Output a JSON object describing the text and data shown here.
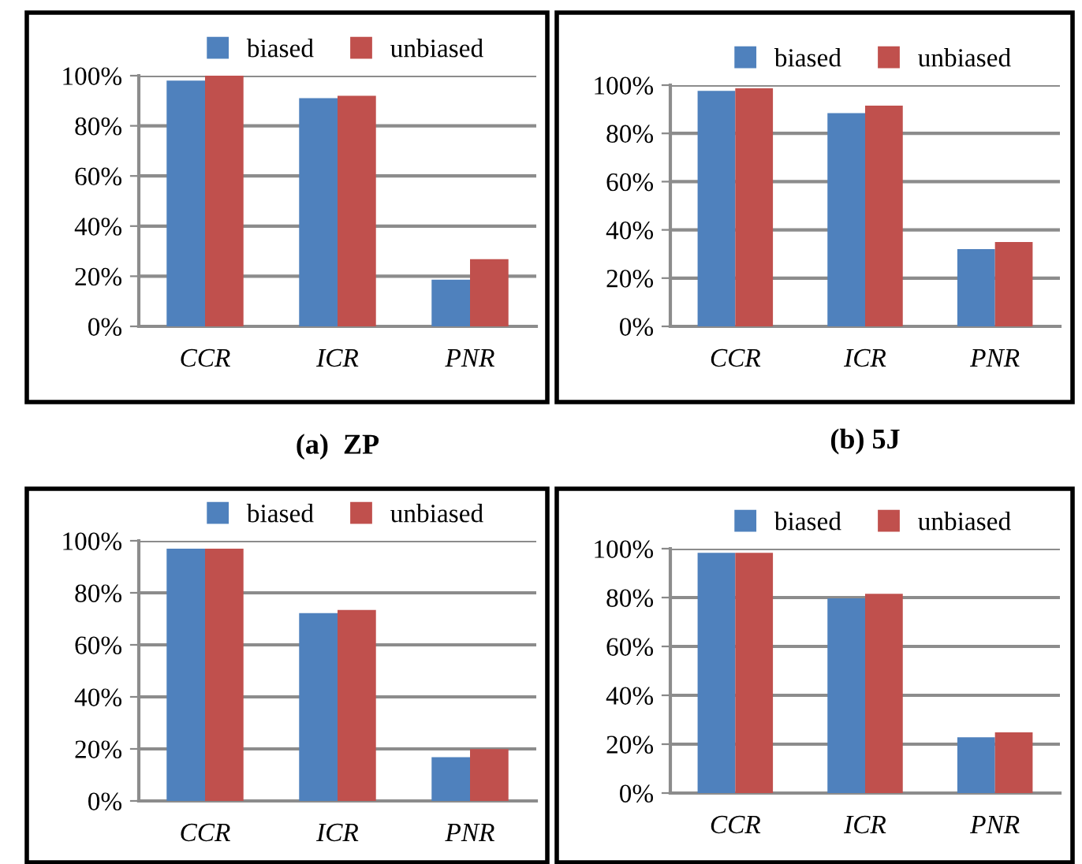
{
  "chart_data": [
    {
      "type": "bar",
      "title": "(a)  ZP",
      "categories": [
        "CCR",
        "ICR",
        "PNR"
      ],
      "series": [
        {
          "name": "biased",
          "color": "#4f81bd",
          "values": [
            98,
            91,
            18.6
          ]
        },
        {
          "name": "unbiased",
          "color": "#c0504d",
          "values": [
            100,
            92,
            26.8
          ]
        }
      ],
      "ylim": [
        0,
        100
      ],
      "yticks": [
        {
          "value": 0,
          "label": "0%"
        },
        {
          "value": 20,
          "label": "20%"
        },
        {
          "value": 40,
          "label": "40%"
        },
        {
          "value": 60,
          "label": "60%"
        },
        {
          "value": 80,
          "label": "80%"
        },
        {
          "value": 100,
          "label": "100%"
        }
      ],
      "grid": "y",
      "legend": "top"
    },
    {
      "type": "bar",
      "title": "(b) 5J",
      "categories": [
        "CCR",
        "ICR",
        "PNR"
      ],
      "series": [
        {
          "name": "biased",
          "color": "#4f81bd",
          "values": [
            97.6,
            88.4,
            32
          ]
        },
        {
          "name": "unbiased",
          "color": "#c0504d",
          "values": [
            98.7,
            91.5,
            35
          ]
        }
      ],
      "ylim": [
        0,
        100
      ],
      "yticks": [
        {
          "value": 0,
          "label": "0%"
        },
        {
          "value": 20,
          "label": "20%"
        },
        {
          "value": 40,
          "label": "40%"
        },
        {
          "value": 60,
          "label": "60%"
        },
        {
          "value": 80,
          "label": "80%"
        },
        {
          "value": 100,
          "label": "100%"
        }
      ],
      "grid": "y",
      "legend": "top"
    },
    {
      "type": "bar",
      "categories": [
        "CCR",
        "ICR",
        "PNR"
      ],
      "series": [
        {
          "name": "biased",
          "color": "#4f81bd",
          "values": [
            97,
            72.2,
            16.8
          ]
        },
        {
          "name": "unbiased",
          "color": "#c0504d",
          "values": [
            97,
            73.4,
            19.9
          ]
        }
      ],
      "ylim": [
        0,
        100
      ],
      "yticks": [
        {
          "value": 0,
          "label": "0%"
        },
        {
          "value": 20,
          "label": "20%"
        },
        {
          "value": 40,
          "label": "40%"
        },
        {
          "value": 60,
          "label": "60%"
        },
        {
          "value": 80,
          "label": "80%"
        },
        {
          "value": 100,
          "label": "100%"
        }
      ],
      "grid": "y",
      "legend": "top"
    },
    {
      "type": "bar",
      "categories": [
        "CCR",
        "ICR",
        "PNR"
      ],
      "series": [
        {
          "name": "biased",
          "color": "#4f81bd",
          "values": [
            98.3,
            79.7,
            22.8
          ]
        },
        {
          "name": "unbiased",
          "color": "#c0504d",
          "values": [
            98.3,
            81.5,
            24.8
          ]
        }
      ],
      "ylim": [
        0,
        100
      ],
      "yticks": [
        {
          "value": 0,
          "label": "0%"
        },
        {
          "value": 20,
          "label": "20%"
        },
        {
          "value": 40,
          "label": "40%"
        },
        {
          "value": 60,
          "label": "60%"
        },
        {
          "value": 80,
          "label": "80%"
        },
        {
          "value": 100,
          "label": "100%"
        }
      ],
      "grid": "y",
      "legend": "top"
    }
  ]
}
